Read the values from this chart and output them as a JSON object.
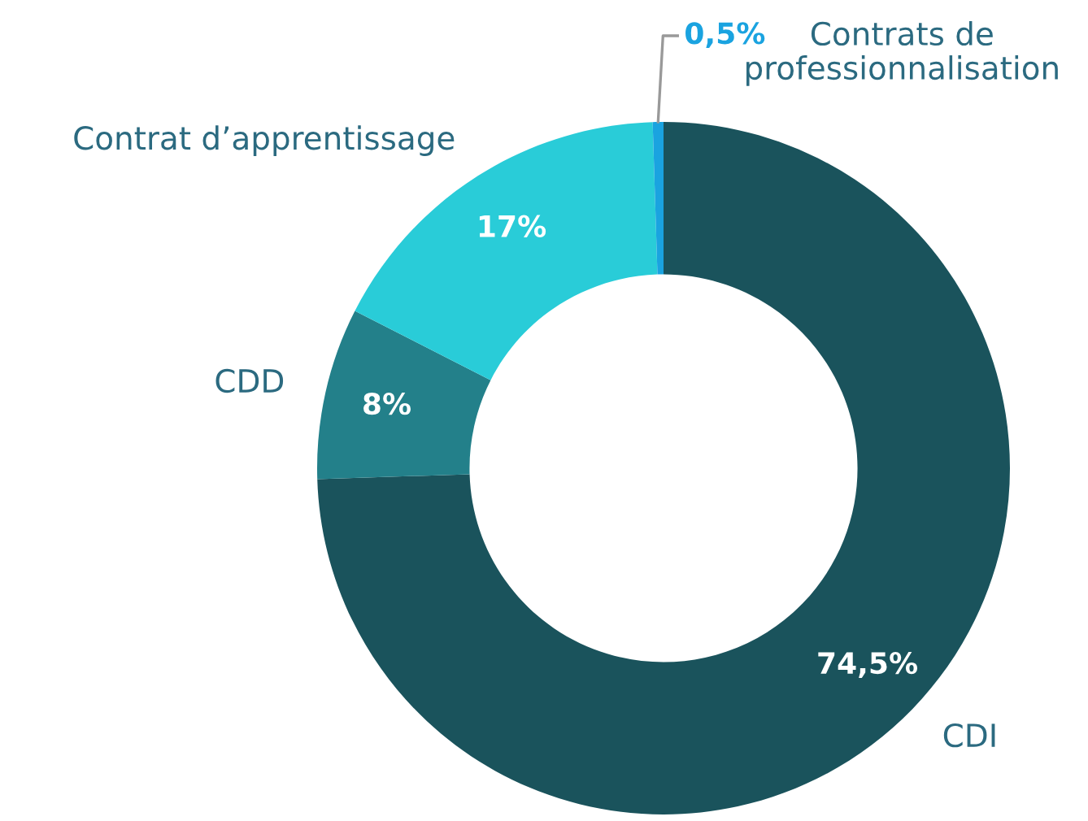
{
  "chart_data": {
    "type": "donut",
    "categories": [
      "CDI",
      "CDD",
      "Contrat d’apprentissage",
      "Contrats de\nprofessionnalisation"
    ],
    "values": [
      74.5,
      8,
      17,
      0.5
    ],
    "colors": [
      "#1a535c",
      "#23808a",
      "#29ccd8",
      "#1aa3e0"
    ],
    "value_labels": [
      "74,5%",
      "8%",
      "17%",
      "0,5%"
    ],
    "legend": false
  }
}
